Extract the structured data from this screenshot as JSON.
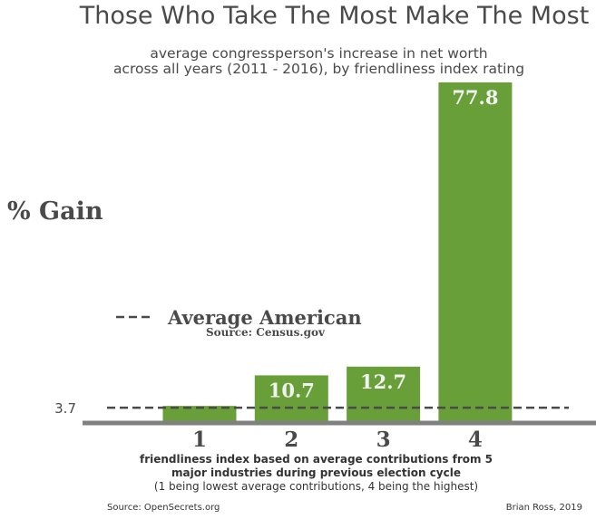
{
  "title": "Those Who Take The Most Make The Most",
  "subtitle_line1": "average congressperson's increase in net worth",
  "subtitle_line2": "across all years (2011 - 2016), by friendliness index rating",
  "ylabel": "% Gain",
  "xlabel_line1": "friendliness index based on average contributions from 5",
  "xlabel_line2": "major industries during previous election cycle",
  "xlabel_line3": "(1 being lowest average contributions, 4 being the highest)",
  "footer_source": "Source: OpenSecrets.org",
  "footer_author": "Brian Ross, 2019",
  "legend": {
    "label": "Average American",
    "source": "Source: Census.gov"
  },
  "colors": {
    "bar": "#689f38",
    "reference_line": "#4a4a4a",
    "baseline": "#808080"
  },
  "chart_data": {
    "type": "bar",
    "categories": [
      "1",
      "2",
      "3",
      "4"
    ],
    "values": [
      3.7,
      10.7,
      12.7,
      77.8
    ],
    "data_labels": [
      "",
      "10.7",
      "12.7",
      "77.8"
    ],
    "reference_line": {
      "value": 3.7,
      "label": "3.7",
      "name": "Average American"
    },
    "ylim": [
      0,
      77.8
    ],
    "grid": false,
    "legend_position": "center-left"
  }
}
